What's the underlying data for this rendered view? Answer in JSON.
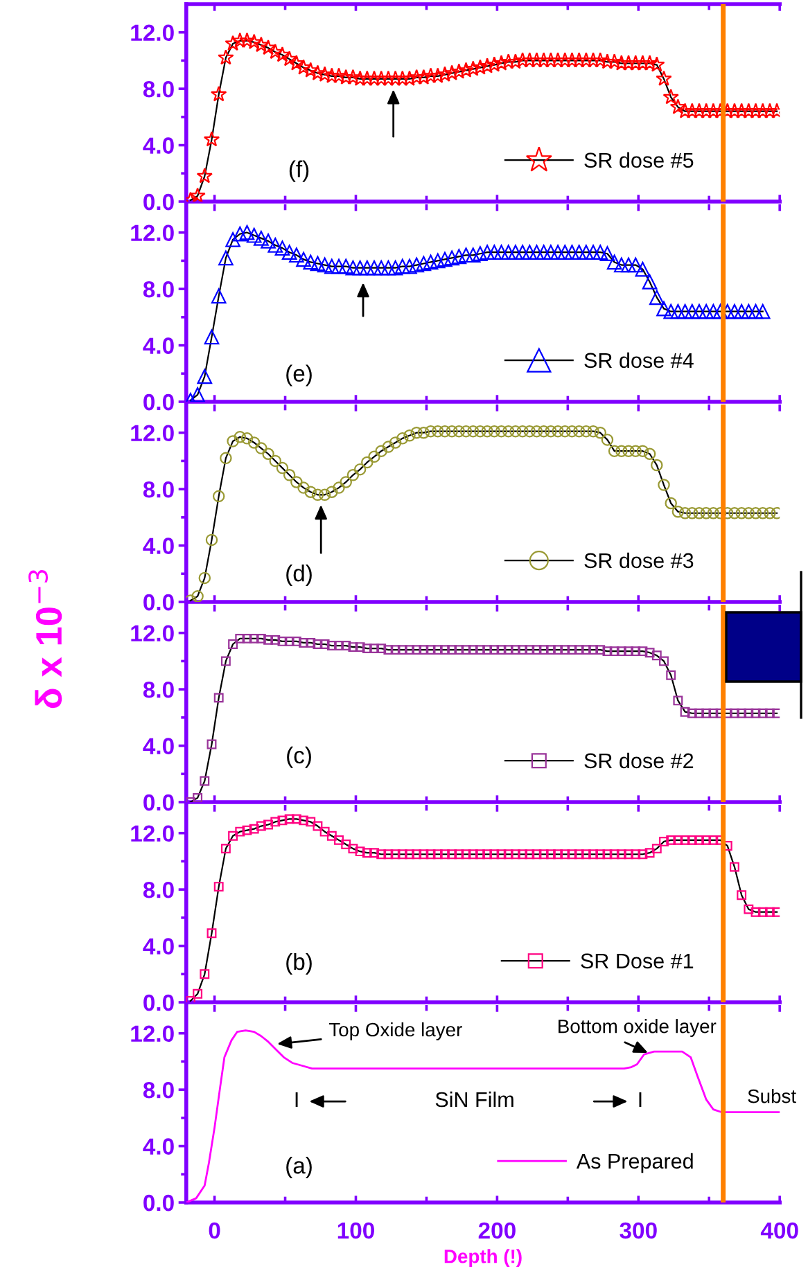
{
  "chart_data": [
    {
      "type": "line",
      "x": [
        -17,
        -12,
        -7,
        -2,
        3,
        8,
        13,
        18,
        23,
        28,
        33,
        38,
        43,
        48,
        53,
        58,
        63,
        68,
        73,
        78,
        83,
        88,
        93,
        98,
        103,
        108,
        113,
        118,
        123,
        128,
        133,
        138,
        143,
        148,
        153,
        158,
        163,
        168,
        173,
        178,
        183,
        188,
        193,
        198,
        203,
        208,
        213,
        218,
        223,
        228,
        233,
        238,
        243,
        248,
        253,
        258,
        263,
        268,
        273,
        278,
        283,
        288,
        293,
        298,
        303,
        308,
        313,
        318,
        323,
        328,
        333,
        338,
        343,
        348,
        353,
        358,
        363,
        368,
        373,
        378,
        383,
        388,
        393,
        398
      ],
      "series": [
        {
          "name": "SR dose #5",
          "color": "#ff0000",
          "values": [
            0.1,
            0.4,
            1.8,
            4.4,
            7.6,
            10.2,
            11.2,
            11.4,
            11.4,
            11.3,
            11.1,
            10.9,
            10.6,
            10.4,
            10.1,
            9.8,
            9.5,
            9.3,
            9.1,
            9.0,
            8.9,
            8.9,
            8.8,
            8.8,
            8.7,
            8.7,
            8.7,
            8.7,
            8.7,
            8.7,
            8.7,
            8.7,
            8.8,
            8.8,
            8.9,
            8.9,
            9.0,
            9.1,
            9.2,
            9.3,
            9.4,
            9.5,
            9.6,
            9.7,
            9.8,
            9.9,
            9.9,
            10.0,
            10.0,
            10.0,
            10.0,
            10.0,
            10.0,
            10.0,
            10.0,
            10.0,
            10.0,
            10.0,
            10.0,
            9.9,
            9.9,
            9.8,
            9.8,
            9.8,
            9.8,
            9.8,
            9.7,
            8.7,
            7.4,
            6.7,
            6.4,
            6.4,
            6.4,
            6.4,
            6.4,
            6.4,
            6.4,
            6.4,
            6.4,
            6.4,
            6.4,
            6.4,
            6.4,
            6.4
          ]
        }
      ],
      "marker": "star",
      "xlim": [
        -20,
        400
      ],
      "ylim": [
        0,
        14
      ],
      "xticks": [
        0,
        100,
        200,
        300,
        400
      ],
      "yticks": [
        {
          "value": 0,
          "label": "0.0"
        },
        {
          "value": 4,
          "label": "4.0"
        },
        {
          "value": 8,
          "label": "8.0"
        },
        {
          "value": 12,
          "label": "12.0"
        }
      ],
      "tick_labels": "y",
      "legend": "bottom right",
      "ref_lines": [
        {
          "axis": "x",
          "value": 360,
          "color": "#ff8000"
        }
      ],
      "annotations": [
        "(f)"
      ]
    },
    {
      "type": "line",
      "x": [
        -17,
        -12,
        -7,
        -2,
        3,
        8,
        13,
        18,
        23,
        28,
        33,
        38,
        43,
        48,
        53,
        58,
        63,
        68,
        73,
        78,
        83,
        88,
        93,
        98,
        103,
        108,
        113,
        118,
        123,
        128,
        133,
        138,
        143,
        148,
        153,
        158,
        163,
        168,
        173,
        178,
        183,
        188,
        193,
        198,
        203,
        208,
        213,
        218,
        223,
        228,
        233,
        238,
        243,
        248,
        253,
        258,
        263,
        268,
        273,
        278,
        283,
        288,
        293,
        298,
        303,
        308,
        313,
        318,
        323,
        328,
        333,
        338,
        343,
        348,
        353,
        358,
        363,
        368,
        373,
        378,
        383,
        388
      ],
      "series": [
        {
          "name": "SR dose #4",
          "color": "#0000ff",
          "values": [
            0.1,
            0.5,
            1.8,
            4.6,
            7.5,
            10.2,
            11.5,
            11.9,
            12.0,
            11.8,
            11.6,
            11.4,
            11.1,
            10.9,
            10.6,
            10.4,
            10.1,
            9.9,
            9.8,
            9.7,
            9.6,
            9.6,
            9.6,
            9.5,
            9.5,
            9.5,
            9.5,
            9.5,
            9.5,
            9.5,
            9.6,
            9.6,
            9.7,
            9.8,
            9.9,
            10.0,
            10.1,
            10.2,
            10.3,
            10.4,
            10.4,
            10.5,
            10.6,
            10.6,
            10.6,
            10.6,
            10.6,
            10.6,
            10.6,
            10.6,
            10.6,
            10.6,
            10.6,
            10.6,
            10.6,
            10.6,
            10.6,
            10.6,
            10.6,
            10.5,
            9.9,
            9.7,
            9.7,
            9.7,
            9.4,
            8.5,
            7.4,
            6.6,
            6.4,
            6.4,
            6.4,
            6.4,
            6.4,
            6.4,
            6.4,
            6.4,
            6.4,
            6.4,
            6.4,
            6.4,
            6.4,
            6.4
          ]
        }
      ],
      "marker": "triangle",
      "xlim": [
        -20,
        400
      ],
      "ylim": [
        0,
        14
      ],
      "xticks": [
        0,
        100,
        200,
        300,
        400
      ],
      "yticks": [
        {
          "value": 0,
          "label": "0.0"
        },
        {
          "value": 4,
          "label": "4.0"
        },
        {
          "value": 8,
          "label": "8.0"
        },
        {
          "value": 12,
          "label": "12.0"
        }
      ],
      "tick_labels": "y",
      "legend": "bottom right",
      "ref_lines": [
        {
          "axis": "x",
          "value": 360,
          "color": "#ff8000"
        }
      ],
      "annotations": [
        "(e)"
      ]
    },
    {
      "type": "line",
      "x": [
        -17,
        -12,
        -7,
        -2,
        3,
        8,
        13,
        18,
        23,
        28,
        33,
        38,
        43,
        48,
        53,
        58,
        63,
        68,
        73,
        78,
        83,
        88,
        93,
        98,
        103,
        108,
        113,
        118,
        123,
        128,
        133,
        138,
        143,
        148,
        153,
        158,
        163,
        168,
        173,
        178,
        183,
        188,
        193,
        198,
        203,
        208,
        213,
        218,
        223,
        228,
        233,
        238,
        243,
        248,
        253,
        258,
        263,
        268,
        273,
        278,
        283,
        288,
        293,
        298,
        303,
        308,
        313,
        318,
        323,
        328,
        333,
        338,
        343,
        348,
        353,
        358,
        363,
        368,
        373,
        378,
        383,
        388,
        393,
        398
      ],
      "series": [
        {
          "name": "SR dose #3",
          "color": "#999933",
          "values": [
            0.1,
            0.4,
            1.7,
            4.4,
            7.5,
            10.2,
            11.4,
            11.7,
            11.6,
            11.3,
            10.9,
            10.5,
            10.0,
            9.5,
            9.0,
            8.5,
            8.1,
            7.8,
            7.6,
            7.6,
            7.8,
            8.1,
            8.5,
            9.0,
            9.4,
            9.9,
            10.3,
            10.7,
            11.0,
            11.3,
            11.6,
            11.8,
            12.0,
            12.0,
            12.1,
            12.1,
            12.1,
            12.1,
            12.1,
            12.1,
            12.1,
            12.1,
            12.1,
            12.1,
            12.1,
            12.1,
            12.1,
            12.1,
            12.1,
            12.1,
            12.1,
            12.1,
            12.1,
            12.1,
            12.1,
            12.1,
            12.1,
            12.1,
            12.0,
            11.5,
            10.7,
            10.7,
            10.7,
            10.7,
            10.7,
            10.5,
            9.7,
            8.3,
            7.0,
            6.4,
            6.3,
            6.3,
            6.3,
            6.3,
            6.3,
            6.3,
            6.3,
            6.3,
            6.3,
            6.3,
            6.3,
            6.3,
            6.3,
            6.3
          ]
        }
      ],
      "marker": "circle",
      "xlim": [
        -20,
        400
      ],
      "ylim": [
        0,
        14
      ],
      "xticks": [
        0,
        100,
        200,
        300,
        400
      ],
      "yticks": [
        {
          "value": 0,
          "label": "0.0"
        },
        {
          "value": 4,
          "label": "4.0"
        },
        {
          "value": 8,
          "label": "8.0"
        },
        {
          "value": 12,
          "label": "12.0"
        }
      ],
      "tick_labels": "y",
      "legend": "bottom right",
      "ref_lines": [
        {
          "axis": "x",
          "value": 360,
          "color": "#ff8000"
        }
      ],
      "annotations": [
        "(d)"
      ]
    },
    {
      "type": "line",
      "x": [
        -17,
        -12,
        -7,
        -2,
        3,
        8,
        13,
        18,
        23,
        28,
        33,
        38,
        43,
        48,
        53,
        58,
        63,
        68,
        73,
        78,
        83,
        88,
        93,
        98,
        103,
        108,
        113,
        118,
        123,
        128,
        133,
        138,
        143,
        148,
        153,
        158,
        163,
        168,
        173,
        178,
        183,
        188,
        193,
        198,
        203,
        208,
        213,
        218,
        223,
        228,
        233,
        238,
        243,
        248,
        253,
        258,
        263,
        268,
        273,
        278,
        283,
        288,
        293,
        298,
        303,
        308,
        313,
        318,
        323,
        328,
        333,
        338,
        343,
        348,
        353,
        358,
        363,
        368,
        373,
        378,
        383,
        388,
        393,
        398
      ],
      "series": [
        {
          "name": "SR dose #2",
          "color": "#993399",
          "values": [
            0.0,
            0.3,
            1.5,
            4.1,
            7.4,
            10.0,
            11.2,
            11.6,
            11.6,
            11.6,
            11.6,
            11.5,
            11.5,
            11.4,
            11.4,
            11.4,
            11.3,
            11.3,
            11.2,
            11.2,
            11.1,
            11.1,
            11.1,
            11.0,
            11.0,
            10.9,
            10.9,
            10.9,
            10.8,
            10.8,
            10.8,
            10.8,
            10.8,
            10.8,
            10.8,
            10.8,
            10.8,
            10.8,
            10.8,
            10.8,
            10.8,
            10.8,
            10.8,
            10.8,
            10.8,
            10.8,
            10.8,
            10.8,
            10.8,
            10.8,
            10.8,
            10.8,
            10.8,
            10.8,
            10.8,
            10.8,
            10.8,
            10.8,
            10.8,
            10.7,
            10.7,
            10.7,
            10.7,
            10.7,
            10.7,
            10.6,
            10.4,
            10.0,
            9.0,
            7.2,
            6.4,
            6.3,
            6.3,
            6.3,
            6.3,
            6.3,
            6.3,
            6.3,
            6.3,
            6.3,
            6.3,
            6.3,
            6.3,
            6.3
          ]
        }
      ],
      "marker": "square",
      "xlim": [
        -20,
        400
      ],
      "ylim": [
        0,
        14
      ],
      "xticks": [
        0,
        100,
        200,
        300,
        400
      ],
      "yticks": [
        {
          "value": 0,
          "label": "0.0"
        },
        {
          "value": 4,
          "label": "4.0"
        },
        {
          "value": 8,
          "label": "8.0"
        },
        {
          "value": 12,
          "label": "12.0"
        }
      ],
      "tick_labels": "y",
      "legend": "bottom right",
      "ref_lines": [
        {
          "axis": "x",
          "value": 360,
          "color": "#ff8000"
        }
      ],
      "ylabel": "δ x 10$^{−3}$",
      "annotations": [
        "(c)"
      ]
    },
    {
      "type": "line",
      "x": [
        -17,
        -12,
        -7,
        -2,
        3,
        8,
        13,
        18,
        23,
        28,
        33,
        38,
        43,
        48,
        53,
        58,
        63,
        68,
        73,
        78,
        83,
        88,
        93,
        98,
        103,
        108,
        113,
        118,
        123,
        128,
        133,
        138,
        143,
        148,
        153,
        158,
        163,
        168,
        173,
        178,
        183,
        188,
        193,
        198,
        203,
        208,
        213,
        218,
        223,
        228,
        233,
        238,
        243,
        248,
        253,
        258,
        263,
        268,
        273,
        278,
        283,
        288,
        293,
        298,
        303,
        308,
        313,
        318,
        323,
        328,
        333,
        338,
        343,
        348,
        353,
        358,
        363,
        368,
        373,
        378,
        383,
        388,
        393,
        398
      ],
      "series": [
        {
          "name": "SR Dose #1",
          "color": "#ff0080",
          "values": [
            0.1,
            0.6,
            2.0,
            4.9,
            8.2,
            10.9,
            11.8,
            12.1,
            12.2,
            12.3,
            12.5,
            12.6,
            12.8,
            12.9,
            13.0,
            13.0,
            12.9,
            12.8,
            12.5,
            12.1,
            11.8,
            11.5,
            11.2,
            10.9,
            10.7,
            10.6,
            10.6,
            10.5,
            10.5,
            10.5,
            10.5,
            10.5,
            10.5,
            10.5,
            10.5,
            10.5,
            10.5,
            10.5,
            10.5,
            10.5,
            10.5,
            10.5,
            10.5,
            10.5,
            10.5,
            10.5,
            10.5,
            10.5,
            10.5,
            10.5,
            10.5,
            10.5,
            10.5,
            10.5,
            10.5,
            10.5,
            10.5,
            10.5,
            10.5,
            10.5,
            10.5,
            10.5,
            10.5,
            10.5,
            10.5,
            10.6,
            10.9,
            11.4,
            11.5,
            11.5,
            11.5,
            11.5,
            11.5,
            11.5,
            11.5,
            11.5,
            11.1,
            9.6,
            7.6,
            6.6,
            6.4,
            6.4,
            6.4,
            6.4
          ]
        }
      ],
      "marker": "square",
      "xlim": [
        -20,
        400
      ],
      "ylim": [
        0,
        14
      ],
      "xticks": [
        0,
        100,
        200,
        300,
        400
      ],
      "yticks": [
        {
          "value": 0,
          "label": "0.0"
        },
        {
          "value": 4,
          "label": "4.0"
        },
        {
          "value": 8,
          "label": "8.0"
        },
        {
          "value": 12,
          "label": "12.0"
        }
      ],
      "tick_labels": "y",
      "legend": "bottom right",
      "ref_lines": [
        {
          "axis": "x",
          "value": 360,
          "color": "#ff8000"
        }
      ],
      "annotations": [
        "(b)"
      ]
    },
    {
      "type": "line",
      "x": [
        -20,
        -13,
        -7,
        -4,
        0,
        4,
        7,
        12,
        16,
        22,
        28,
        33,
        38,
        44,
        49,
        55,
        62,
        69,
        80,
        290,
        295,
        299,
        304,
        311,
        331,
        337,
        342,
        348,
        353,
        359,
        400
      ],
      "series": [
        {
          "name": "As Prepared",
          "color": "#ff00ff",
          "values": [
            0.0,
            0.3,
            1.2,
            2.8,
            5.3,
            8.2,
            10.3,
            11.5,
            12.1,
            12.2,
            12.1,
            11.8,
            11.4,
            10.8,
            10.3,
            9.9,
            9.7,
            9.5,
            9.5,
            9.5,
            9.6,
            9.8,
            10.5,
            10.7,
            10.7,
            10.3,
            8.9,
            7.3,
            6.6,
            6.4,
            6.4
          ]
        }
      ],
      "xlim": [
        -20,
        400
      ],
      "ylim": [
        0,
        14
      ],
      "xticks": [
        0,
        100,
        200,
        300,
        400
      ],
      "yticks": [
        {
          "value": 0,
          "label": "0.0"
        },
        {
          "value": 4,
          "label": "4.0"
        },
        {
          "value": 8,
          "label": "8.0"
        },
        {
          "value": 12,
          "label": "12.0"
        }
      ],
      "xlabel": "Depth (!)",
      "legend": "bottom right",
      "ref_lines": [
        {
          "axis": "x",
          "value": 360,
          "color": "#ff8000"
        }
      ],
      "annotations": [
        "Top Oxide layer",
        "Bottom oxide layer",
        "I",
        "SiN Film",
        "I",
        "Subst",
        "(a)"
      ]
    }
  ]
}
